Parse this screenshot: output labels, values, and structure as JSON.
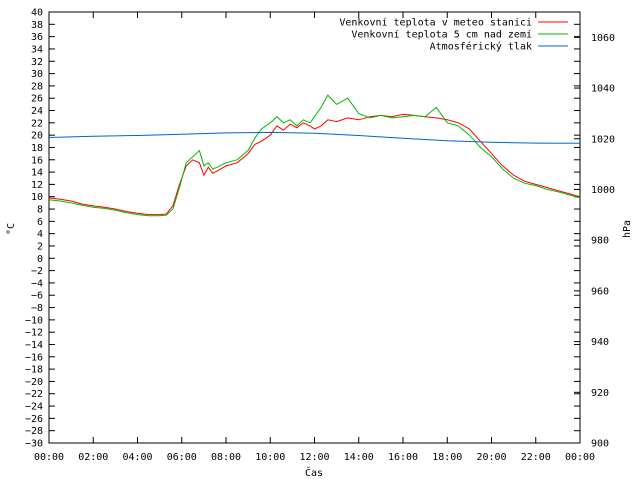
{
  "chart_data": {
    "type": "line",
    "xlabel": "Čas",
    "ylabel_left": "°C",
    "ylabel_right": "hPa",
    "ylim_left": [
      -30,
      40
    ],
    "ylim_right": [
      900,
      1070
    ],
    "xlim": [
      0,
      24
    ],
    "x_ticks": [
      {
        "v": 0,
        "label": "00:00"
      },
      {
        "v": 2,
        "label": "02:00"
      },
      {
        "v": 4,
        "label": "04:00"
      },
      {
        "v": 6,
        "label": "06:00"
      },
      {
        "v": 8,
        "label": "08:00"
      },
      {
        "v": 10,
        "label": "10:00"
      },
      {
        "v": 12,
        "label": "12:00"
      },
      {
        "v": 14,
        "label": "14:00"
      },
      {
        "v": 16,
        "label": "16:00"
      },
      {
        "v": 18,
        "label": "18:00"
      },
      {
        "v": 20,
        "label": "20:00"
      },
      {
        "v": 22,
        "label": "22:00"
      },
      {
        "v": 24,
        "label": "00:00"
      }
    ],
    "y_left_ticks": [
      40,
      38,
      36,
      34,
      32,
      30,
      28,
      26,
      24,
      22,
      20,
      18,
      16,
      14,
      12,
      10,
      8,
      6,
      4,
      2,
      0,
      -2,
      -4,
      -6,
      -8,
      -10,
      -12,
      -14,
      -16,
      -18,
      -20,
      -22,
      -24,
      -26,
      -28,
      -30
    ],
    "y_left_tick_labels": [
      "40",
      "38",
      "36",
      "34",
      "32",
      "30",
      "28",
      "26",
      "24",
      "22",
      "20",
      "18",
      "16",
      "14",
      "12",
      "10",
      "8",
      "6",
      "4",
      "2",
      "0",
      "−2",
      "−4",
      "−6",
      "−8",
      "−10",
      "−12",
      "−14",
      "−16",
      "−18",
      "−20",
      "−22",
      "−24",
      "−26",
      "−28",
      "−30"
    ],
    "y_right_ticks": [
      1060,
      1040,
      1020,
      1000,
      980,
      960,
      940,
      920,
      900
    ],
    "y_right_tick_labels": [
      "1060",
      "1040",
      "1020",
      "1000",
      "980",
      "960",
      "940",
      "920",
      "900"
    ],
    "grid": false,
    "legend_position": "top-right",
    "series": [
      {
        "name": "Venkovní teplota v meteo stanici",
        "color": "#ff0000",
        "axis": "left",
        "x": [
          0,
          0.5,
          1,
          1.5,
          2,
          2.5,
          3,
          3.5,
          4,
          4.5,
          5,
          5.3,
          5.6,
          5.9,
          6.2,
          6.5,
          6.8,
          7.0,
          7.2,
          7.4,
          7.6,
          8,
          8.5,
          9,
          9.3,
          9.6,
          10,
          10.3,
          10.6,
          10.9,
          11.2,
          11.5,
          11.8,
          12,
          12.3,
          12.6,
          13,
          13.5,
          14,
          14.5,
          15,
          15.5,
          16,
          16.5,
          17,
          17.5,
          18,
          18.5,
          19,
          19.5,
          20,
          20.5,
          21,
          21.5,
          22,
          22.5,
          23,
          23.5,
          24
        ],
        "values": [
          9.8,
          9.6,
          9.3,
          8.8,
          8.5,
          8.3,
          8.0,
          7.6,
          7.3,
          7.1,
          7.1,
          7.2,
          8.5,
          12.0,
          15.0,
          16.0,
          15.5,
          13.5,
          14.8,
          13.8,
          14.2,
          15.0,
          15.5,
          17.0,
          18.5,
          19.0,
          20.0,
          21.5,
          20.8,
          21.8,
          21.2,
          22.0,
          21.5,
          21.0,
          21.5,
          22.5,
          22.2,
          22.8,
          22.5,
          23.0,
          23.2,
          23.0,
          23.4,
          23.2,
          23.0,
          22.8,
          22.5,
          22.0,
          21.0,
          19.0,
          17.0,
          15.0,
          13.5,
          12.5,
          12.0,
          11.5,
          11.0,
          10.5,
          10.0
        ]
      },
      {
        "name": "Venkovní teplota 5 cm nad zemí",
        "color": "#00bb00",
        "axis": "left",
        "x": [
          0,
          0.5,
          1,
          1.5,
          2,
          2.5,
          3,
          3.5,
          4,
          4.5,
          5,
          5.3,
          5.6,
          5.9,
          6.2,
          6.5,
          6.8,
          7.0,
          7.2,
          7.4,
          7.6,
          8,
          8.5,
          9,
          9.3,
          9.6,
          10,
          10.3,
          10.6,
          10.9,
          11.2,
          11.5,
          11.8,
          12,
          12.3,
          12.6,
          13,
          13.5,
          14,
          14.5,
          15,
          15.5,
          16,
          16.5,
          17,
          17.5,
          18,
          18.5,
          19,
          19.5,
          20,
          20.5,
          21,
          21.5,
          22,
          22.5,
          23,
          23.5,
          24
        ],
        "values": [
          9.5,
          9.3,
          9.0,
          8.6,
          8.3,
          8.1,
          7.8,
          7.4,
          7.1,
          6.9,
          6.9,
          7.0,
          8.0,
          11.5,
          15.5,
          16.5,
          17.5,
          15.0,
          15.5,
          14.5,
          14.8,
          15.5,
          16.0,
          17.5,
          19.5,
          21.0,
          22.0,
          23.0,
          22.0,
          22.5,
          21.5,
          22.5,
          22.0,
          23.0,
          24.5,
          26.5,
          25.0,
          26.0,
          23.5,
          22.8,
          23.2,
          22.8,
          23.0,
          23.2,
          23.0,
          24.5,
          22.0,
          21.5,
          20.0,
          18.0,
          16.5,
          14.5,
          13.0,
          12.2,
          11.8,
          11.2,
          10.8,
          10.3,
          9.8
        ]
      },
      {
        "name": "Atmosférický tlak",
        "color": "#0066cc",
        "axis": "right",
        "x": [
          0,
          2,
          4,
          6,
          8,
          10,
          12,
          14,
          16,
          18,
          20,
          22,
          24
        ],
        "values": [
          1020.5,
          1021.0,
          1021.3,
          1021.8,
          1022.3,
          1022.5,
          1022.2,
          1021.3,
          1020.2,
          1019.2,
          1018.6,
          1018.3,
          1018.2
        ]
      }
    ]
  }
}
